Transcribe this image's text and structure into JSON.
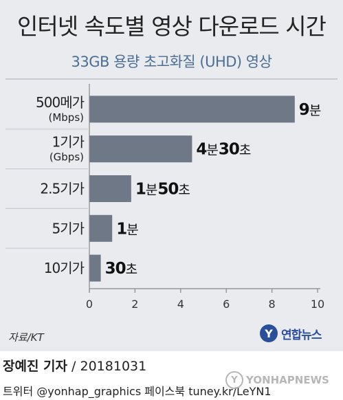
{
  "chart_data": {
    "type": "bar",
    "orientation": "horizontal",
    "title": "인터넷 속도별 영상 다운로드 시간",
    "subtitle": "33GB 용량 초고화질 (UHD) 영상",
    "categories": [
      {
        "label": "500메가",
        "sublabel": "(Mbps)"
      },
      {
        "label": "1기가",
        "sublabel": "(Gbps)"
      },
      {
        "label": "2.5기가",
        "sublabel": ""
      },
      {
        "label": "5기가",
        "sublabel": ""
      },
      {
        "label": "10기가",
        "sublabel": ""
      }
    ],
    "values": [
      9,
      4.5,
      1.833,
      1,
      0.5
    ],
    "value_labels": [
      [
        {
          "n": "9",
          "u": "분"
        }
      ],
      [
        {
          "n": "4",
          "u": "분"
        },
        {
          "n": "30",
          "u": "초"
        }
      ],
      [
        {
          "n": "1",
          "u": "분"
        },
        {
          "n": "50",
          "u": "초"
        }
      ],
      [
        {
          "n": "1",
          "u": "분"
        }
      ],
      [
        {
          "n": "30",
          "u": "초"
        }
      ]
    ],
    "xlim": [
      0,
      10
    ],
    "xticks": [
      "0",
      "2",
      "4",
      "6",
      "8",
      "10"
    ],
    "grid": false,
    "bar_color": "#6e7886"
  },
  "source": "자료/KT",
  "logo": {
    "mark": "Y",
    "text": "연합뉴스"
  },
  "credit": {
    "reporter": "장예진 기자",
    "date": " / 20181031"
  },
  "social": "트위터 @yonhap_graphics  페이스북 tuney.kr/LeYN1",
  "watermark": "YONHAPNEWS"
}
